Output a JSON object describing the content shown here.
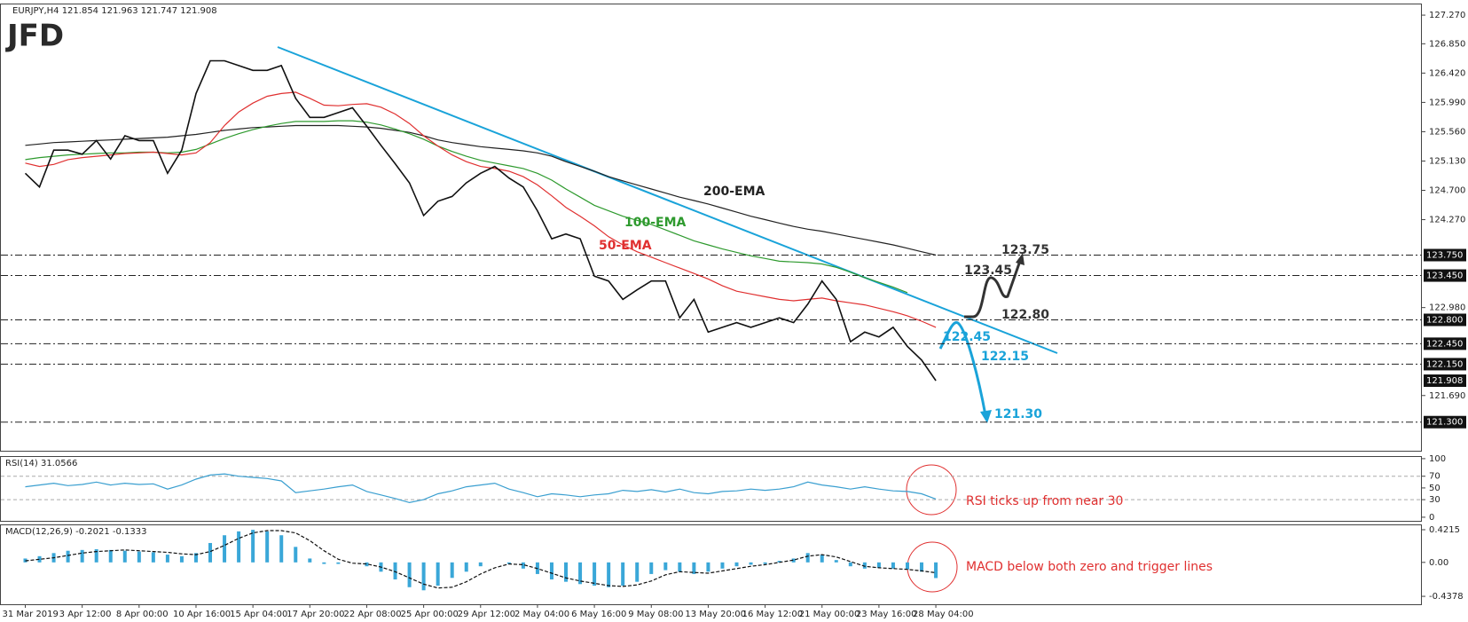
{
  "logo": "JFD",
  "chart_data": [
    {
      "type": "line",
      "title": "EURJPY,H4  121.854 121.963 121.747 121.908",
      "color": "#111111",
      "categories": [
        "31 Mar 2019",
        null,
        null,
        null,
        "3 Apr 12:00",
        null,
        null,
        null,
        "8 Apr 00:00",
        null,
        null,
        null,
        "10 Apr 16:00",
        null,
        null,
        null,
        "15 Apr 04:00",
        null,
        null,
        null,
        "17 Apr 20:00",
        null,
        null,
        null,
        "22 Apr 08:00",
        null,
        null,
        null,
        "25 Apr 00:00",
        null,
        null,
        null,
        "29 Apr 12:00",
        null,
        null,
        null,
        "2 May 04:00",
        null,
        null,
        null,
        "6 May 16:00",
        null,
        null,
        null,
        "9 May 08:00",
        null,
        null,
        null,
        "13 May 20:00",
        null,
        null,
        null,
        "16 May 12:00",
        null,
        null,
        null,
        "21 May 00:00",
        null,
        null,
        null,
        "23 May 16:00",
        null,
        null,
        null,
        "28 May 04:00"
      ],
      "values": [
        124.95,
        124.75,
        125.29,
        125.29,
        125.23,
        125.43,
        125.16,
        125.5,
        125.43,
        125.43,
        124.95,
        125.29,
        126.12,
        126.6,
        126.6,
        126.53,
        126.46,
        126.46,
        126.53,
        126.05,
        125.77,
        125.77,
        125.84,
        125.91,
        125.64,
        125.36,
        125.09,
        124.81,
        124.33,
        124.54,
        124.61,
        124.81,
        124.95,
        125.05,
        124.88,
        124.75,
        124.4,
        123.99,
        124.06,
        123.99,
        123.44,
        123.37,
        123.1,
        123.24,
        123.37,
        123.37,
        122.83,
        123.1,
        122.62,
        122.69,
        122.76,
        122.69,
        122.76,
        122.83,
        122.76,
        123.03,
        123.37,
        123.1,
        122.48,
        122.62,
        122.55,
        122.69,
        122.41,
        122.21,
        121.908
      ],
      "series": [
        {
          "name": "200-EMA",
          "color": "#222222",
          "values": [
            125.36,
            125.38,
            125.4,
            125.41,
            125.42,
            125.43,
            125.44,
            125.45,
            125.46,
            125.47,
            125.48,
            125.5,
            125.52,
            125.55,
            125.58,
            125.6,
            125.62,
            125.63,
            125.64,
            125.65,
            125.65,
            125.65,
            125.65,
            125.64,
            125.63,
            125.61,
            125.58,
            125.55,
            125.5,
            125.44,
            125.4,
            125.37,
            125.34,
            125.32,
            125.3,
            125.28,
            125.25,
            125.2,
            125.12,
            125.05,
            124.98,
            124.9,
            124.84,
            124.78,
            124.72,
            124.66,
            124.6,
            124.55,
            124.5,
            124.44,
            124.38,
            124.32,
            124.27,
            124.22,
            124.17,
            124.13,
            124.1,
            124.06,
            124.02,
            123.98,
            123.94,
            123.9,
            123.85,
            123.8,
            123.75
          ]
        },
        {
          "name": "100-EMA",
          "color": "#2e9a2e",
          "values": [
            125.15,
            125.18,
            125.2,
            125.22,
            125.23,
            125.24,
            125.25,
            125.25,
            125.26,
            125.26,
            125.25,
            125.26,
            125.3,
            125.38,
            125.46,
            125.53,
            125.59,
            125.64,
            125.68,
            125.71,
            125.71,
            125.71,
            125.72,
            125.72,
            125.7,
            125.66,
            125.6,
            125.53,
            125.45,
            125.35,
            125.27,
            125.2,
            125.14,
            125.1,
            125.06,
            125.02,
            124.95,
            124.85,
            124.72,
            124.6,
            124.48,
            124.4,
            124.32,
            124.26,
            124.2,
            124.12,
            124.04,
            123.96,
            123.9,
            123.84,
            123.79,
            123.74,
            123.7,
            123.66,
            123.65,
            123.64,
            123.62,
            123.57,
            123.5,
            123.42,
            123.35,
            123.28,
            123.2,
            null,
            null
          ]
        },
        {
          "name": "50-EMA",
          "color": "#e03030",
          "values": [
            125.1,
            125.05,
            125.08,
            125.15,
            125.18,
            125.2,
            125.22,
            125.24,
            125.25,
            125.26,
            125.24,
            125.22,
            125.25,
            125.4,
            125.65,
            125.85,
            125.98,
            126.08,
            126.12,
            126.14,
            126.05,
            125.95,
            125.94,
            125.96,
            125.97,
            125.92,
            125.82,
            125.68,
            125.5,
            125.35,
            125.22,
            125.12,
            125.05,
            125.02,
            124.98,
            124.9,
            124.78,
            124.62,
            124.45,
            124.32,
            124.18,
            124.02,
            123.9,
            123.8,
            123.72,
            123.64,
            123.56,
            123.48,
            123.4,
            123.3,
            123.22,
            123.18,
            123.14,
            123.1,
            123.08,
            123.1,
            123.12,
            123.08,
            123.05,
            123.02,
            122.97,
            122.92,
            122.86,
            122.78,
            122.69
          ]
        }
      ],
      "ylim": [
        120.88,
        127.44
      ],
      "yticks": [
        {
          "value": 127.27,
          "label": "127.270"
        },
        {
          "value": 126.85,
          "label": "126.850"
        },
        {
          "value": 126.42,
          "label": "126.420"
        },
        {
          "value": 125.99,
          "label": "125.990"
        },
        {
          "value": 125.56,
          "label": "125.560"
        },
        {
          "value": 125.13,
          "label": "125.130"
        },
        {
          "value": 124.7,
          "label": "124.700"
        },
        {
          "value": 124.27,
          "label": "124.270"
        },
        {
          "value": 122.98,
          "label": "122.980"
        },
        {
          "value": 121.69,
          "label": "121.690"
        }
      ],
      "levels": [
        {
          "value": 123.75,
          "label": "123.750",
          "note": "123.75",
          "note_color": "#333333"
        },
        {
          "value": 123.45,
          "label": "123.450",
          "note": "123.45",
          "note_color": "#333333"
        },
        {
          "value": 122.8,
          "label": "122.800",
          "note": "122.80",
          "note_color": "#333333"
        },
        {
          "value": 122.45,
          "label": "122.450",
          "note": "122.45",
          "note_color": "#1aa3d9"
        },
        {
          "value": 122.15,
          "label": "122.150",
          "note": "122.15",
          "note_color": "#1aa3d9"
        },
        {
          "value": 121.3,
          "label": "121.300",
          "note": "121.30",
          "note_color": "#1aa3d9"
        }
      ],
      "last": {
        "value": 121.908,
        "label": "121.908"
      }
    },
    {
      "type": "line",
      "title": "RSI(14) 31.0566",
      "color": "#3a9fd0",
      "values": [
        52,
        55,
        58,
        54,
        56,
        60,
        55,
        58,
        56,
        57,
        48,
        55,
        65,
        72,
        74,
        70,
        68,
        66,
        62,
        42,
        45,
        48,
        52,
        55,
        44,
        38,
        32,
        25,
        30,
        40,
        45,
        52,
        55,
        58,
        48,
        42,
        35,
        40,
        38,
        35,
        38,
        40,
        46,
        44,
        47,
        43,
        48,
        42,
        40,
        44,
        45,
        48,
        46,
        48,
        52,
        60,
        55,
        52,
        48,
        52,
        48,
        45,
        44,
        40,
        31.0566
      ],
      "ylim": [
        -7.7,
        104.4
      ],
      "yticks": [
        0,
        30,
        50,
        70,
        100
      ],
      "levels": [
        30,
        70
      ],
      "annotation": "RSI ticks up from near 30",
      "annotation_color": "#e03030"
    },
    {
      "type": "macd",
      "title": "MACD(12,26,9) -0.2021 -0.1333",
      "color": "#3aa7d8",
      "signal_color": "#111111",
      "values": [
        0.05,
        0.08,
        0.12,
        0.15,
        0.16,
        0.17,
        0.16,
        0.15,
        0.14,
        0.13,
        0.1,
        0.08,
        0.12,
        0.25,
        0.35,
        0.4,
        0.42,
        0.4,
        0.35,
        0.2,
        0.05,
        -0.02,
        -0.02,
        0,
        -0.05,
        -0.12,
        -0.22,
        -0.32,
        -0.36,
        -0.3,
        -0.2,
        -0.12,
        -0.05,
        0,
        -0.02,
        -0.08,
        -0.15,
        -0.22,
        -0.25,
        -0.28,
        -0.3,
        -0.32,
        -0.3,
        -0.25,
        -0.15,
        -0.1,
        -0.12,
        -0.15,
        -0.12,
        -0.08,
        -0.05,
        -0.03,
        -0.02,
        0.02,
        0.05,
        0.12,
        0.1,
        0.03,
        -0.05,
        -0.08,
        -0.07,
        -0.08,
        -0.09,
        -0.12,
        -0.2021
      ],
      "signal": [
        0.02,
        0.04,
        0.06,
        0.09,
        0.12,
        0.14,
        0.15,
        0.16,
        0.15,
        0.14,
        0.13,
        0.11,
        0.1,
        0.14,
        0.22,
        0.31,
        0.38,
        0.41,
        0.41,
        0.38,
        0.28,
        0.15,
        0.04,
        -0.01,
        -0.02,
        -0.06,
        -0.12,
        -0.2,
        -0.28,
        -0.33,
        -0.32,
        -0.25,
        -0.15,
        -0.07,
        -0.02,
        -0.03,
        -0.08,
        -0.14,
        -0.2,
        -0.24,
        -0.27,
        -0.3,
        -0.31,
        -0.29,
        -0.24,
        -0.16,
        -0.12,
        -0.13,
        -0.14,
        -0.11,
        -0.08,
        -0.05,
        -0.03,
        0,
        0.03,
        0.08,
        0.1,
        0.07,
        0.01,
        -0.05,
        -0.07,
        -0.08,
        -0.09,
        -0.11,
        -0.1333
      ],
      "ylim": [
        -0.54,
        0.49
      ],
      "yticks": [
        0.4215,
        {
          "value": 0,
          "label": "0.00"
        },
        -0.4378
      ],
      "annotation": "MACD below both zero and trigger lines",
      "annotation_color": "#e03030"
    }
  ]
}
